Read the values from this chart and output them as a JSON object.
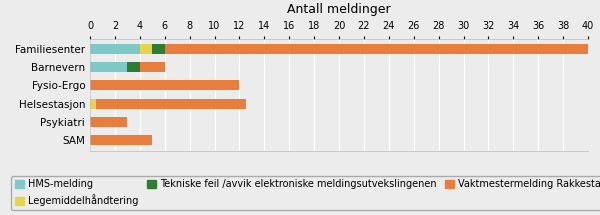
{
  "categories": [
    "Familiesenter",
    "Barnevern",
    "Fysio-Ergo",
    "Helsestasjon",
    "Psykiatri",
    "SAM"
  ],
  "series": {
    "HMS-melding": [
      4,
      3,
      0,
      0,
      0,
      0
    ],
    "Legemiddelhåndtering": [
      1,
      0,
      0,
      0.5,
      0,
      0
    ],
    "Tekniske feil /avvik elektroniske meldingsutvekslingenen": [
      1,
      1,
      0,
      0,
      0,
      0
    ],
    "Vaktmestermelding Rakkestad kommune": [
      38,
      2,
      12,
      12,
      3,
      5
    ]
  },
  "colors": {
    "HMS-melding": "#7EC8C8",
    "Legemiddelhåndtering": "#E6D44A",
    "Tekniske feil /avvik elektroniske meldingsutvekslingenen": "#2E7D32",
    "Vaktmestermelding Rakkestad kommune": "#E87D3E"
  },
  "title": "Antall meldinger",
  "xlim": [
    0,
    40
  ],
  "xticks": [
    0,
    2,
    4,
    6,
    8,
    10,
    12,
    14,
    16,
    18,
    20,
    22,
    24,
    26,
    28,
    30,
    32,
    34,
    36,
    38,
    40
  ],
  "background_color": "#ececec",
  "grid_color": "#ffffff",
  "legend_fontsize": 7.0,
  "title_fontsize": 9,
  "tick_fontsize": 7,
  "ylabel_fontsize": 7.5
}
